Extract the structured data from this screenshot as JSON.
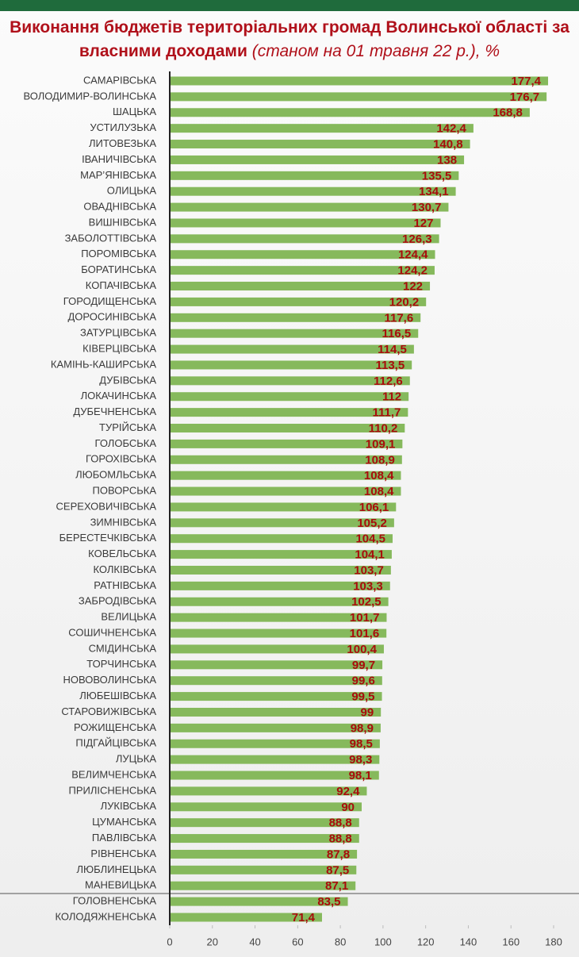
{
  "chart_data": {
    "type": "barh",
    "title": "Виконання бюджетів територіальних громад Волинської області за власними доходами",
    "subtitle": "(станом на 01 травня 22 р.), %",
    "categories": [
      "САМАРІВСЬКА",
      "ВОЛОДИМИР-ВОЛИНСЬКА",
      "ШАЦЬКА",
      "УСТИЛУЗЬКА",
      "ЛИТОВЕЗЬКА",
      "ІВАНИЧІВСЬКА",
      "МАР’ЯНІВСЬКА",
      "ОЛИЦЬКА",
      "ОВАДНІВСЬКА",
      "ВИШНІВСЬКА",
      "ЗАБОЛОТТІВСЬКА",
      "ПОРОМІВСЬКА",
      "БОРАТИНСЬКА",
      "КОПАЧІВСЬКА",
      "ГОРОДИЩЕНСЬКА",
      "ДОРОСИНІВСЬКА",
      "ЗАТУРЦІВСЬКА",
      "КІВЕРЦІВСЬКА",
      "КАМІНЬ-КАШИРСЬКА",
      "ДУБІВСЬКА",
      "ЛОКАЧИНСЬКА",
      "ДУБЕЧНЕНСЬКА",
      "ТУРІЙСЬКА",
      "ГОЛОБСЬКА",
      "ГОРОХІВСЬКА",
      "ЛЮБОМЛЬСЬКА",
      "ПОВОРСЬКА",
      "СЕРЕХОВИЧІВСЬКА",
      "ЗИМНІВСЬКА",
      "БЕРЕСТЕЧКІВСЬКА",
      "КОВЕЛЬСЬКА",
      "КОЛКІВСЬКА",
      "РАТНІВСЬКА",
      "ЗАБРОДІВСЬКА",
      "ВЕЛИЦЬКА",
      "СОШИЧНЕНСЬКА",
      "СМІДИНСЬКА",
      "ТОРЧИНСЬКА",
      "НОВОВОЛИНСЬКА",
      "ЛЮБЕШІВСЬКА",
      "СТАРОВИЖІВСЬКА",
      "РОЖИЩЕНСЬКА",
      "ПІДГАЙЦІВСЬКА",
      "ЛУЦЬКА",
      "ВЕЛИМЧЕНСЬКА",
      "ПРИЛІСНЕНСЬКА",
      "ЛУКІВСЬКА",
      "ЦУМАНСЬКА",
      "ПАВЛІВСЬКА",
      "РІВНЕНСЬКА",
      "ЛЮБЛИНЕЦЬКА",
      "МАНЕВИЦЬКА",
      "ГОЛОВНЕНСЬКА",
      "КОЛОДЯЖНЕНСЬКА"
    ],
    "values": [
      177.4,
      176.7,
      168.8,
      142.4,
      140.8,
      138,
      135.5,
      134.1,
      130.7,
      127,
      126.3,
      124.4,
      124.2,
      122,
      120.2,
      117.6,
      116.5,
      114.5,
      113.5,
      112.6,
      112,
      111.7,
      110.2,
      109.1,
      108.9,
      108.4,
      108.4,
      106.1,
      105.2,
      104.5,
      104.1,
      103.7,
      103.3,
      102.5,
      101.7,
      101.6,
      100.4,
      99.7,
      99.6,
      99.5,
      99,
      98.9,
      98.5,
      98.3,
      98.1,
      92.4,
      90,
      88.8,
      88.8,
      87.8,
      87.5,
      87.1,
      83.5,
      71.4
    ],
    "value_labels": [
      "177,4",
      "176,7",
      "168,8",
      "142,4",
      "140,8",
      "138",
      "135,5",
      "134,1",
      "130,7",
      "127",
      "126,3",
      "124,4",
      "124,2",
      "122",
      "120,2",
      "117,6",
      "116,5",
      "114,5",
      "113,5",
      "112,6",
      "112",
      "111,7",
      "110,2",
      "109,1",
      "108,9",
      "108,4",
      "108,4",
      "106,1",
      "105,2",
      "104,5",
      "104,1",
      "103,7",
      "103,3",
      "102,5",
      "101,7",
      "101,6",
      "100,4",
      "99,7",
      "99,6",
      "99,5",
      "99",
      "98,9",
      "98,5",
      "98,3",
      "98,1",
      "92,4",
      "90",
      "88,8",
      "88,8",
      "87,8",
      "87,5",
      "87,1",
      "83,5",
      "71,4"
    ],
    "color": "#86b95c",
    "xlim": [
      0,
      180
    ],
    "xticks": [
      0,
      20,
      40,
      60,
      80,
      100,
      120,
      140,
      160,
      180
    ],
    "grid": false
  }
}
